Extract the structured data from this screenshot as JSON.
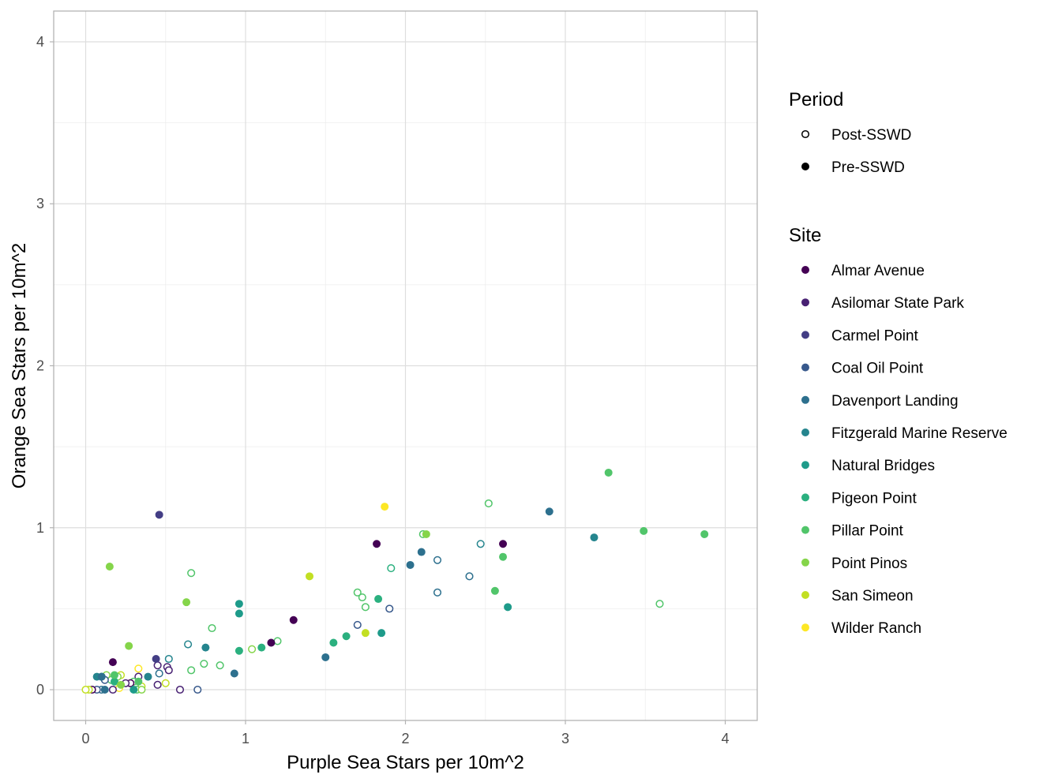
{
  "chart_data": {
    "type": "scatter",
    "title": "",
    "xlabel": "Purple Sea Stars per 10m^2",
    "ylabel": "Orange Sea Stars per 10m^2",
    "xlim": [
      -0.2,
      4.2
    ],
    "ylim": [
      -0.19,
      4.19
    ],
    "x_ticks": [
      "0",
      "1",
      "2",
      "3",
      "4"
    ],
    "y_ticks": [
      "0",
      "1",
      "2",
      "3",
      "4"
    ],
    "grid": true,
    "legend_position": "right",
    "legend": {
      "period_title": "Period",
      "periods": [
        {
          "name": "Post-SSWD",
          "filled": false
        },
        {
          "name": "Pre-SSWD",
          "filled": true
        }
      ],
      "site_title": "Site",
      "sites": [
        {
          "name": "Almar Avenue",
          "color": "#440154"
        },
        {
          "name": "Asilomar State Park",
          "color": "#482173"
        },
        {
          "name": "Carmel Point",
          "color": "#433E85"
        },
        {
          "name": "Coal Oil Point",
          "color": "#38598C"
        },
        {
          "name": "Davenport Landing",
          "color": "#2D708E"
        },
        {
          "name": "Fitzgerald Marine Reserve",
          "color": "#25858E"
        },
        {
          "name": "Natural Bridges",
          "color": "#1E9B8A"
        },
        {
          "name": "Pigeon Point",
          "color": "#2BB07F"
        },
        {
          "name": "Pillar Point",
          "color": "#51C56A"
        },
        {
          "name": "Point Pinos",
          "color": "#85D54A"
        },
        {
          "name": "San Simeon",
          "color": "#C2DF23"
        },
        {
          "name": "Wilder Ranch",
          "color": "#FDE725"
        }
      ]
    },
    "points": [
      {
        "x": 0.46,
        "y": 1.08,
        "site": "Carmel Point",
        "period": "Pre-SSWD"
      },
      {
        "x": 0.15,
        "y": 0.76,
        "site": "Point Pinos",
        "period": "Pre-SSWD"
      },
      {
        "x": 0.63,
        "y": 0.54,
        "site": "Point Pinos",
        "period": "Pre-SSWD"
      },
      {
        "x": 0.27,
        "y": 0.27,
        "site": "Point Pinos",
        "period": "Pre-SSWD"
      },
      {
        "x": 1.87,
        "y": 1.13,
        "site": "Wilder Ranch",
        "period": "Pre-SSWD"
      },
      {
        "x": 1.82,
        "y": 0.9,
        "site": "Almar Avenue",
        "period": "Pre-SSWD"
      },
      {
        "x": 2.61,
        "y": 0.9,
        "site": "Almar Avenue",
        "period": "Pre-SSWD"
      },
      {
        "x": 1.3,
        "y": 0.43,
        "site": "Almar Avenue",
        "period": "Pre-SSWD"
      },
      {
        "x": 1.16,
        "y": 0.29,
        "site": "Almar Avenue",
        "period": "Pre-SSWD"
      },
      {
        "x": 0.17,
        "y": 0.17,
        "site": "Almar Avenue",
        "period": "Pre-SSWD"
      },
      {
        "x": 2.9,
        "y": 1.1,
        "site": "Davenport Landing",
        "period": "Pre-SSWD"
      },
      {
        "x": 2.1,
        "y": 0.85,
        "site": "Davenport Landing",
        "period": "Pre-SSWD"
      },
      {
        "x": 2.03,
        "y": 0.77,
        "site": "Davenport Landing",
        "period": "Pre-SSWD"
      },
      {
        "x": 1.5,
        "y": 0.2,
        "site": "Davenport Landing",
        "period": "Pre-SSWD"
      },
      {
        "x": 0.93,
        "y": 0.1,
        "site": "Davenport Landing",
        "period": "Pre-SSWD"
      },
      {
        "x": 3.18,
        "y": 0.94,
        "site": "Fitzgerald Marine Reserve",
        "period": "Pre-SSWD"
      },
      {
        "x": 0.96,
        "y": 0.53,
        "site": "Natural Bridges",
        "period": "Pre-SSWD"
      },
      {
        "x": 0.96,
        "y": 0.47,
        "site": "Natural Bridges",
        "period": "Pre-SSWD"
      },
      {
        "x": 0.75,
        "y": 0.26,
        "site": "Fitzgerald Marine Reserve",
        "period": "Pre-SSWD"
      },
      {
        "x": 0.39,
        "y": 0.08,
        "site": "Fitzgerald Marine Reserve",
        "period": "Pre-SSWD"
      },
      {
        "x": 1.85,
        "y": 0.35,
        "site": "Natural Bridges",
        "period": "Pre-SSWD"
      },
      {
        "x": 2.64,
        "y": 0.51,
        "site": "Natural Bridges",
        "period": "Pre-SSWD"
      },
      {
        "x": 1.83,
        "y": 0.56,
        "site": "Pigeon Point",
        "period": "Pre-SSWD"
      },
      {
        "x": 1.63,
        "y": 0.33,
        "site": "Pigeon Point",
        "period": "Pre-SSWD"
      },
      {
        "x": 1.55,
        "y": 0.29,
        "site": "Pigeon Point",
        "period": "Pre-SSWD"
      },
      {
        "x": 1.1,
        "y": 0.26,
        "site": "Pigeon Point",
        "period": "Pre-SSWD"
      },
      {
        "x": 0.96,
        "y": 0.24,
        "site": "Pigeon Point",
        "period": "Pre-SSWD"
      },
      {
        "x": 3.27,
        "y": 1.34,
        "site": "Pillar Point",
        "period": "Pre-SSWD"
      },
      {
        "x": 3.49,
        "y": 0.98,
        "site": "Pillar Point",
        "period": "Pre-SSWD"
      },
      {
        "x": 3.87,
        "y": 0.96,
        "site": "Pillar Point",
        "period": "Pre-SSWD"
      },
      {
        "x": 2.61,
        "y": 0.82,
        "site": "Pillar Point",
        "period": "Pre-SSWD"
      },
      {
        "x": 2.56,
        "y": 0.61,
        "site": "Pillar Point",
        "period": "Pre-SSWD"
      },
      {
        "x": 2.13,
        "y": 0.96,
        "site": "Point Pinos",
        "period": "Pre-SSWD"
      },
      {
        "x": 1.4,
        "y": 0.7,
        "site": "San Simeon",
        "period": "Pre-SSWD"
      },
      {
        "x": 1.75,
        "y": 0.35,
        "site": "San Simeon",
        "period": "Pre-SSWD"
      },
      {
        "x": 0.44,
        "y": 0.19,
        "site": "Carmel Point",
        "period": "Pre-SSWD"
      },
      {
        "x": 0.07,
        "y": 0.08,
        "site": "Fitzgerald Marine Reserve",
        "period": "Pre-SSWD"
      },
      {
        "x": 0.1,
        "y": 0.08,
        "site": "Davenport Landing",
        "period": "Pre-SSWD"
      },
      {
        "x": 0.18,
        "y": 0.05,
        "site": "Pigeon Point",
        "period": "Pre-SSWD"
      },
      {
        "x": 0.22,
        "y": 0.03,
        "site": "Point Pinos",
        "period": "Pre-SSWD"
      },
      {
        "x": 0.12,
        "y": 0.0,
        "site": "Davenport Landing",
        "period": "Pre-SSWD"
      },
      {
        "x": 0.3,
        "y": 0.0,
        "site": "Natural Bridges",
        "period": "Pre-SSWD"
      },
      {
        "x": 0.33,
        "y": 0.05,
        "site": "Pillar Point",
        "period": "Pre-SSWD"
      },
      {
        "x": 0.18,
        "y": 0.09,
        "site": "Pillar Point",
        "period": "Pre-SSWD"
      },
      {
        "x": 2.52,
        "y": 1.15,
        "site": "Pillar Point",
        "period": "Post-SSWD"
      },
      {
        "x": 2.11,
        "y": 0.96,
        "site": "Pillar Point",
        "period": "Post-SSWD"
      },
      {
        "x": 2.47,
        "y": 0.9,
        "site": "Fitzgerald Marine Reserve",
        "period": "Post-SSWD"
      },
      {
        "x": 2.2,
        "y": 0.8,
        "site": "Davenport Landing",
        "period": "Post-SSWD"
      },
      {
        "x": 1.91,
        "y": 0.75,
        "site": "Pigeon Point",
        "period": "Post-SSWD"
      },
      {
        "x": 2.4,
        "y": 0.7,
        "site": "Davenport Landing",
        "period": "Post-SSWD"
      },
      {
        "x": 2.2,
        "y": 0.6,
        "site": "Davenport Landing",
        "period": "Post-SSWD"
      },
      {
        "x": 1.7,
        "y": 0.6,
        "site": "Pillar Point",
        "period": "Post-SSWD"
      },
      {
        "x": 1.73,
        "y": 0.57,
        "site": "Pillar Point",
        "period": "Post-SSWD"
      },
      {
        "x": 1.75,
        "y": 0.51,
        "site": "Pillar Point",
        "period": "Post-SSWD"
      },
      {
        "x": 1.9,
        "y": 0.5,
        "site": "Coal Oil Point",
        "period": "Post-SSWD"
      },
      {
        "x": 1.7,
        "y": 0.4,
        "site": "Coal Oil Point",
        "period": "Post-SSWD"
      },
      {
        "x": 3.59,
        "y": 0.53,
        "site": "Pillar Point",
        "period": "Post-SSWD"
      },
      {
        "x": 0.66,
        "y": 0.72,
        "site": "Pillar Point",
        "period": "Post-SSWD"
      },
      {
        "x": 0.79,
        "y": 0.38,
        "site": "Pillar Point",
        "period": "Post-SSWD"
      },
      {
        "x": 1.2,
        "y": 0.3,
        "site": "Pillar Point",
        "period": "Post-SSWD"
      },
      {
        "x": 1.04,
        "y": 0.25,
        "site": "Point Pinos",
        "period": "Post-SSWD"
      },
      {
        "x": 0.64,
        "y": 0.28,
        "site": "Fitzgerald Marine Reserve",
        "period": "Post-SSWD"
      },
      {
        "x": 0.52,
        "y": 0.19,
        "site": "Fitzgerald Marine Reserve",
        "period": "Post-SSWD"
      },
      {
        "x": 0.74,
        "y": 0.16,
        "site": "Pillar Point",
        "period": "Post-SSWD"
      },
      {
        "x": 0.84,
        "y": 0.15,
        "site": "Pillar Point",
        "period": "Post-SSWD"
      },
      {
        "x": 0.66,
        "y": 0.12,
        "site": "Pillar Point",
        "period": "Post-SSWD"
      },
      {
        "x": 0.45,
        "y": 0.15,
        "site": "Asilomar State Park",
        "period": "Post-SSWD"
      },
      {
        "x": 0.51,
        "y": 0.14,
        "site": "Asilomar State Park",
        "period": "Post-SSWD"
      },
      {
        "x": 0.52,
        "y": 0.12,
        "site": "Asilomar State Park",
        "period": "Post-SSWD"
      },
      {
        "x": 0.46,
        "y": 0.1,
        "site": "Davenport Landing",
        "period": "Post-SSWD"
      },
      {
        "x": 0.45,
        "y": 0.03,
        "site": "Asilomar State Park",
        "period": "Post-SSWD"
      },
      {
        "x": 0.5,
        "y": 0.04,
        "site": "San Simeon",
        "period": "Post-SSWD"
      },
      {
        "x": 0.59,
        "y": 0.0,
        "site": "Asilomar State Park",
        "period": "Post-SSWD"
      },
      {
        "x": 0.7,
        "y": 0.0,
        "site": "Coal Oil Point",
        "period": "Post-SSWD"
      },
      {
        "x": 0.33,
        "y": 0.13,
        "site": "Wilder Ranch",
        "period": "Post-SSWD"
      },
      {
        "x": 0.33,
        "y": 0.08,
        "site": "Asilomar State Park",
        "period": "Post-SSWD"
      },
      {
        "x": 0.3,
        "y": 0.05,
        "site": "Pillar Point",
        "period": "Post-SSWD"
      },
      {
        "x": 0.35,
        "y": 0.02,
        "site": "San Simeon",
        "period": "Post-SSWD"
      },
      {
        "x": 0.32,
        "y": 0.0,
        "site": "Pillar Point",
        "period": "Post-SSWD"
      },
      {
        "x": 0.35,
        "y": 0.0,
        "site": "Point Pinos",
        "period": "Post-SSWD"
      },
      {
        "x": 0.28,
        "y": 0.04,
        "site": "Almar Avenue",
        "period": "Post-SSWD"
      },
      {
        "x": 0.25,
        "y": 0.04,
        "site": "Asilomar State Park",
        "period": "Post-SSWD"
      },
      {
        "x": 0.22,
        "y": 0.09,
        "site": "San Simeon",
        "period": "Post-SSWD"
      },
      {
        "x": 0.2,
        "y": 0.08,
        "site": "Point Pinos",
        "period": "Post-SSWD"
      },
      {
        "x": 0.16,
        "y": 0.06,
        "site": "Pillar Point",
        "period": "Post-SSWD"
      },
      {
        "x": 0.13,
        "y": 0.09,
        "site": "Point Pinos",
        "period": "Post-SSWD"
      },
      {
        "x": 0.1,
        "y": 0.08,
        "site": "Pigeon Point",
        "period": "Post-SSWD"
      },
      {
        "x": 0.12,
        "y": 0.06,
        "site": "Coal Oil Point",
        "period": "Post-SSWD"
      },
      {
        "x": 0.21,
        "y": 0.01,
        "site": "Wilder Ranch",
        "period": "Post-SSWD"
      },
      {
        "x": 0.17,
        "y": 0.0,
        "site": "Asilomar State Park",
        "period": "Post-SSWD"
      },
      {
        "x": 0.1,
        "y": 0.0,
        "site": "Davenport Landing",
        "period": "Post-SSWD"
      },
      {
        "x": 0.07,
        "y": 0.0,
        "site": "Coal Oil Point",
        "period": "Post-SSWD"
      },
      {
        "x": 0.04,
        "y": 0.0,
        "site": "Almar Avenue",
        "period": "Post-SSWD"
      },
      {
        "x": 0.02,
        "y": 0.0,
        "site": "San Simeon",
        "period": "Post-SSWD"
      },
      {
        "x": 0.0,
        "y": 0.0,
        "site": "San Simeon",
        "period": "Post-SSWD"
      }
    ]
  }
}
